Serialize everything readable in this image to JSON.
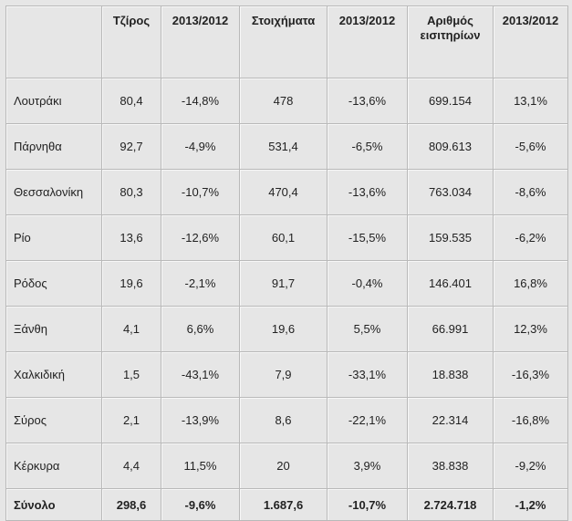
{
  "table": {
    "header": [
      "Τζίρος",
      "2013/2012",
      "Στοιχήματα",
      "2013/2012",
      "Αριθμός εισιτηρίων",
      "2013/2012"
    ],
    "rows": [
      [
        "Λουτράκι",
        "80,4",
        "-14,8%",
        "478",
        "-13,6%",
        "699.154",
        "13,1%"
      ],
      [
        "Πάρνηθα",
        "92,7",
        "-4,9%",
        "531,4",
        "-6,5%",
        "809.613",
        "-5,6%"
      ],
      [
        "Θεσσαλονίκη",
        "80,3",
        "-10,7%",
        "470,4",
        "-13,6%",
        "763.034",
        "-8,6%"
      ],
      [
        "Ρίο",
        "13,6",
        "-12,6%",
        "60,1",
        "-15,5%",
        "159.535",
        "-6,2%"
      ],
      [
        "Ρόδος",
        "19,6",
        "-2,1%",
        "91,7",
        "-0,4%",
        "146.401",
        "16,8%"
      ],
      [
        "Ξάνθη",
        "4,1",
        "6,6%",
        "19,6",
        "5,5%",
        "66.991",
        "12,3%"
      ],
      [
        "Χαλκιδική",
        "1,5",
        "-43,1%",
        "7,9",
        "-33,1%",
        "18.838",
        "-16,3%"
      ],
      [
        "Σύρος",
        "2,1",
        "-13,9%",
        "8,6",
        "-22,1%",
        "22.314",
        "-16,8%"
      ],
      [
        "Κέρκυρα",
        "4,4",
        "11,5%",
        "20",
        "3,9%",
        "38.838",
        "-9,2%"
      ]
    ],
    "total": [
      "Σύνολο",
      "298,6",
      "-9,6%",
      "1.687,6",
      "-10,7%",
      "2.724.718",
      "-1,2%"
    ]
  }
}
